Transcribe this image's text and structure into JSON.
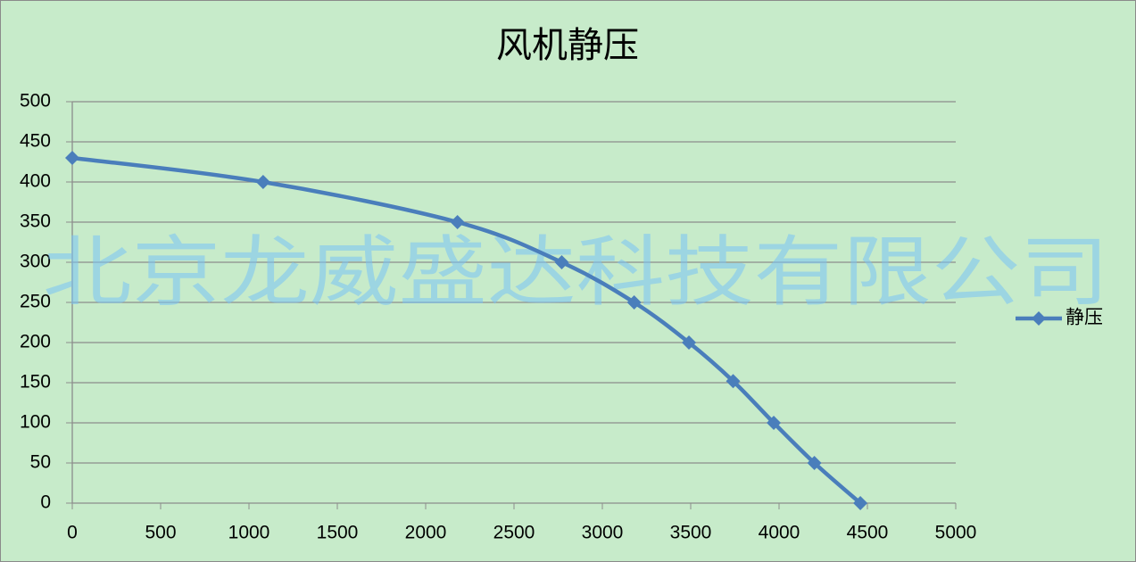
{
  "chart_data": {
    "type": "line",
    "title": "风机静压",
    "watermark": "北京龙威盛达科技有限公司",
    "x": [
      0,
      1080,
      2180,
      2770,
      3180,
      3490,
      3740,
      3970,
      4200,
      4460
    ],
    "series": [
      {
        "name": "静压",
        "color": "#4a7ebb",
        "values": [
          430,
          400,
          350,
          300,
          250,
          200,
          152,
          100,
          50,
          0
        ]
      }
    ],
    "xlim": [
      0,
      5000
    ],
    "xticks": [
      0,
      500,
      1000,
      1500,
      2000,
      2500,
      3000,
      3500,
      4000,
      4500,
      5000
    ],
    "ylim": [
      0,
      500
    ],
    "yticks": [
      0,
      50,
      100,
      150,
      200,
      250,
      300,
      350,
      400,
      450,
      500
    ],
    "grid": true,
    "smooth": true,
    "legend": "right"
  }
}
